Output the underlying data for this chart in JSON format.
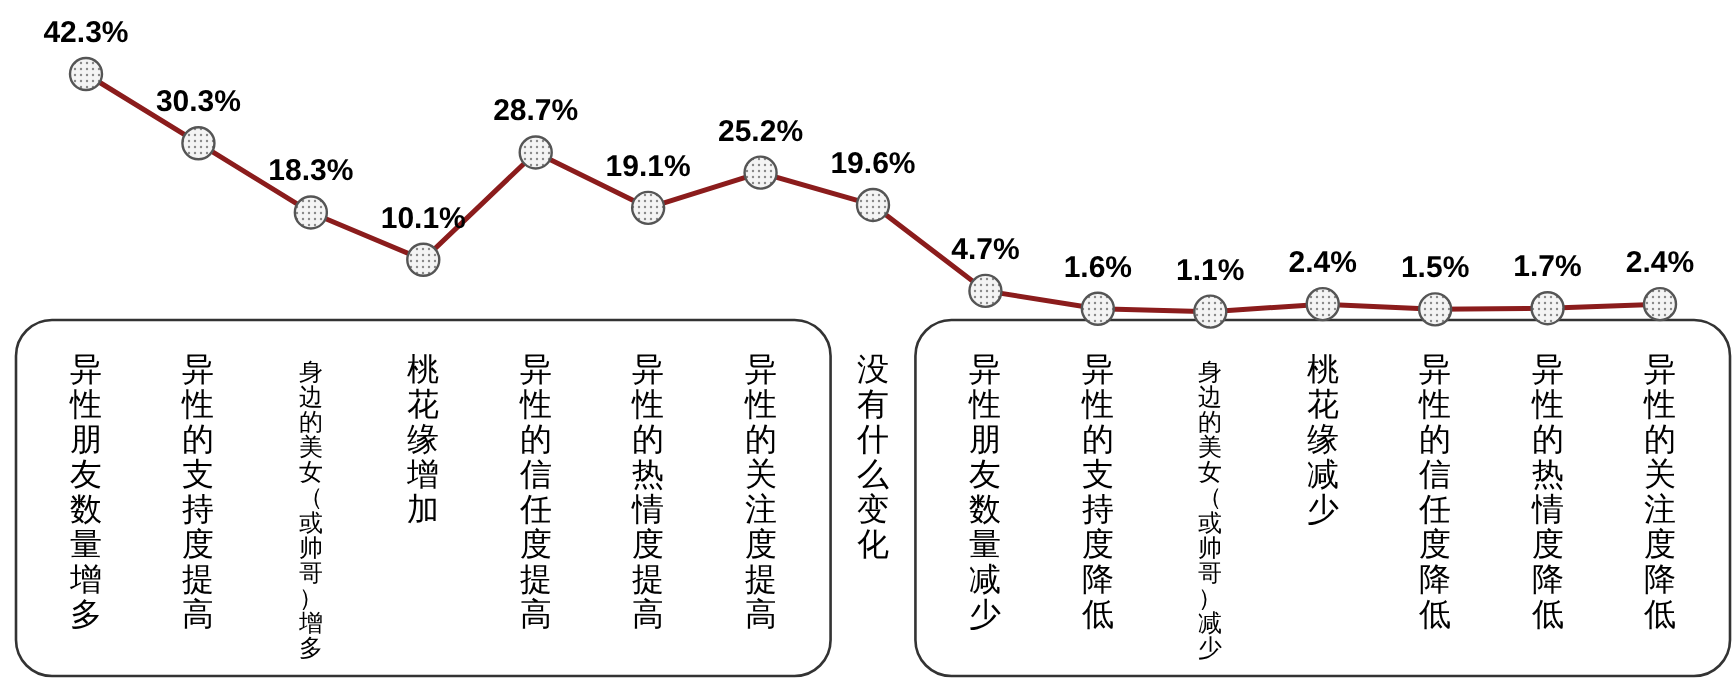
{
  "chart_data": {
    "type": "line",
    "categories": [
      "异性朋友数量增多",
      "异性的支持度提高",
      "身边的美女（或帅哥）增多",
      "桃花缘增加",
      "异性的信任度提高",
      "异性的热情度提高",
      "异性的关注度提高",
      "没有什么变化",
      "异性朋友数量减少",
      "异性的支持度降低",
      "身边的美女（或帅哥）减少",
      "桃花缘减少",
      "异性的信任度降低",
      "异性的热情度降低",
      "异性的关注度降低"
    ],
    "series": [
      {
        "color": "#8b1c1c",
        "values": [
          42.3,
          30.3,
          18.3,
          10.1,
          28.7,
          19.1,
          25.2,
          19.6,
          4.7,
          1.6,
          1.1,
          2.4,
          1.5,
          1.7,
          2.4
        ],
        "value_labels": [
          "42.3%",
          "30.3%",
          "18.3%",
          "10.1%",
          "28.7%",
          "19.1%",
          "25.2%",
          "19.6%",
          "4.7%",
          "1.6%",
          "1.1%",
          "2.4%",
          "1.5%",
          "1.7%",
          "2.4%"
        ]
      }
    ],
    "marker": "circle",
    "line_style": "solid"
  }
}
